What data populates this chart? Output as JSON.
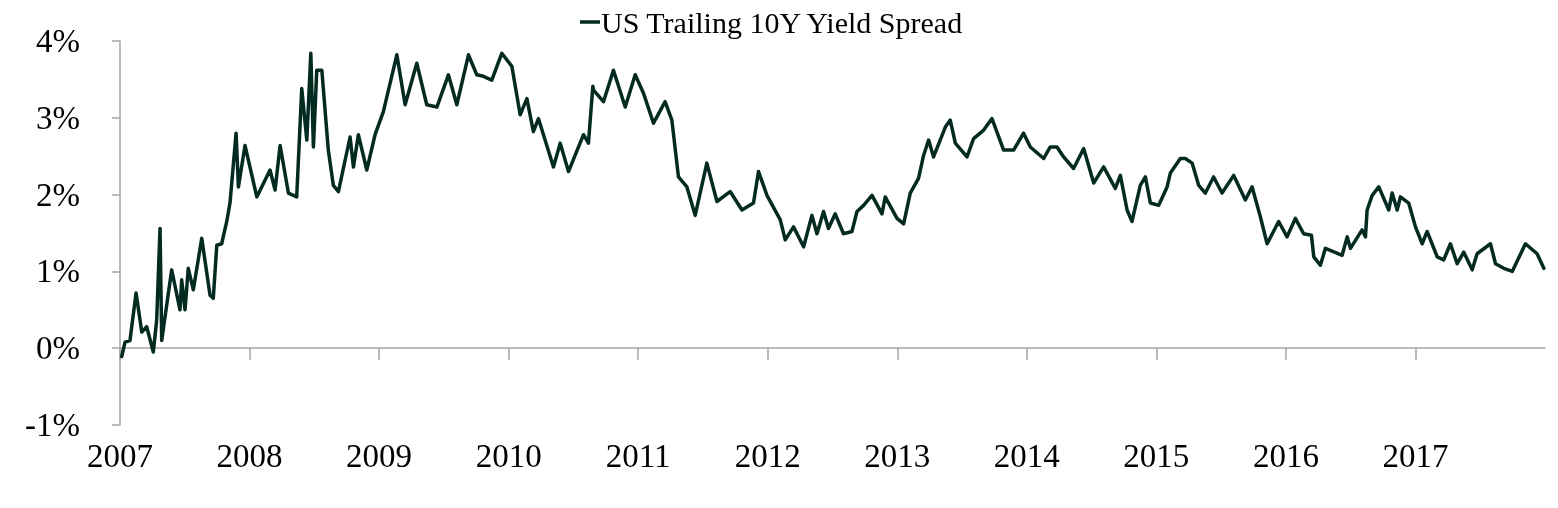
{
  "chart_data": {
    "type": "line",
    "legend": "top",
    "marker": "none",
    "line_style": "solid",
    "xlim": [
      2007,
      2018
    ],
    "xticks": [
      {
        "value": 2007,
        "label": "2007"
      },
      {
        "value": 2008,
        "label": "2008"
      },
      {
        "value": 2009,
        "label": "2009"
      },
      {
        "value": 2010,
        "label": "2010"
      },
      {
        "value": 2011,
        "label": "2011"
      },
      {
        "value": 2012,
        "label": "2012"
      },
      {
        "value": 2013,
        "label": "2013"
      },
      {
        "value": 2014,
        "label": "2014"
      },
      {
        "value": 2015,
        "label": "2015"
      },
      {
        "value": 2016,
        "label": "2016"
      },
      {
        "value": 2017,
        "label": "2017"
      }
    ],
    "ylim": [
      -1,
      4
    ],
    "yticks": [
      {
        "value": -1,
        "label": "-1%"
      },
      {
        "value": 0,
        "label": "0%"
      },
      {
        "value": 1,
        "label": "1%"
      },
      {
        "value": 2,
        "label": "2%"
      },
      {
        "value": 3,
        "label": "3%"
      },
      {
        "value": 4,
        "label": "4%"
      }
    ],
    "x": [
      2007.013,
      2007.039,
      2007.077,
      2007.124,
      2007.168,
      2007.206,
      2007.257,
      2007.283,
      2007.309,
      2007.322,
      2007.399,
      2007.463,
      2007.476,
      2007.502,
      2007.527,
      2007.566,
      2007.631,
      2007.695,
      2007.72,
      2007.747,
      2007.785,
      2007.824,
      2007.849,
      2007.896,
      2007.914,
      2007.965,
      2008.056,
      2008.158,
      2008.197,
      2008.236,
      2008.3,
      2008.364,
      2008.403,
      2008.442,
      2008.473,
      2008.493,
      2008.519,
      2008.558,
      2008.608,
      2008.647,
      2008.686,
      2008.776,
      2008.802,
      2008.84,
      2008.905,
      2008.969,
      2009.033,
      2009.137,
      2009.201,
      2009.291,
      2009.368,
      2009.446,
      2009.535,
      2009.6,
      2009.69,
      2009.754,
      2009.805,
      2009.87,
      2009.947,
      2010.025,
      2010.089,
      2010.141,
      2010.191,
      2010.23,
      2010.346,
      2010.398,
      2010.462,
      2010.578,
      2010.616,
      2010.65,
      2010.655,
      2010.732,
      2010.809,
      2010.9,
      2010.977,
      2011.041,
      2011.118,
      2011.208,
      2011.26,
      2011.311,
      2011.376,
      2011.44,
      2011.53,
      2011.608,
      2011.71,
      2011.801,
      2011.89,
      2011.929,
      2011.994,
      2012.097,
      2012.135,
      2012.199,
      2012.277,
      2012.341,
      2012.38,
      2012.431,
      2012.469,
      2012.521,
      2012.585,
      2012.65,
      2012.689,
      2012.74,
      2012.805,
      2012.882,
      2012.907,
      2012.998,
      2013.049,
      2013.1,
      2013.164,
      2013.203,
      2013.242,
      2013.28,
      2013.371,
      2013.409,
      2013.448,
      2013.538,
      2013.589,
      2013.667,
      2013.731,
      2013.821,
      2013.898,
      2013.975,
      2014.027,
      2014.13,
      2014.181,
      2014.233,
      2014.284,
      2014.361,
      2014.439,
      2014.516,
      2014.593,
      2014.683,
      2014.722,
      2014.774,
      2014.812,
      2014.876,
      2014.915,
      2014.954,
      2015.018,
      2015.083,
      2015.108,
      2015.185,
      2015.224,
      2015.276,
      2015.327,
      2015.378,
      2015.442,
      2015.507,
      2015.597,
      2015.687,
      2015.739,
      2015.803,
      2015.855,
      2015.944,
      2016.009,
      2016.073,
      2016.137,
      2016.197,
      2016.215,
      2016.266,
      2016.305,
      2016.434,
      2016.473,
      2016.498,
      2016.588,
      2016.614,
      2016.627,
      2016.666,
      2016.717,
      2016.794,
      2016.82,
      2016.859,
      2016.884,
      2016.948,
      2017,
      2017.052,
      2017.09,
      2017.168,
      2017.218,
      2017.27,
      2017.322,
      2017.373,
      2017.438,
      2017.476,
      2017.579,
      2017.618,
      2017.682,
      2017.747,
      2017.849,
      2017.939,
      2017.991
    ],
    "series": [
      {
        "name": "US Trailing 10Y Yield Spread",
        "color": "#032b22",
        "values": [
          -0.11,
          0.08,
          0.1,
          0.72,
          0.21,
          0.28,
          -0.05,
          0.36,
          1.56,
          0.1,
          1.02,
          0.5,
          0.89,
          0.5,
          1.04,
          0.76,
          1.43,
          0.69,
          0.65,
          1.34,
          1.36,
          1.65,
          1.89,
          2.8,
          2.1,
          2.64,
          1.97,
          2.32,
          2.06,
          2.64,
          2.02,
          1.97,
          3.38,
          2.71,
          3.84,
          2.62,
          3.62,
          3.62,
          2.58,
          2.12,
          2.04,
          2.75,
          2.36,
          2.78,
          2.32,
          2.78,
          3.08,
          3.82,
          3.17,
          3.71,
          3.17,
          3.14,
          3.56,
          3.17,
          3.82,
          3.56,
          3.54,
          3.49,
          3.84,
          3.67,
          3.04,
          3.25,
          2.82,
          2.99,
          2.36,
          2.67,
          2.3,
          2.78,
          2.67,
          3.41,
          3.36,
          3.21,
          3.62,
          3.14,
          3.56,
          3.32,
          2.93,
          3.21,
          2.97,
          2.23,
          2.1,
          1.73,
          2.41,
          1.91,
          2.04,
          1.8,
          1.89,
          2.3,
          1.99,
          1.67,
          1.41,
          1.58,
          1.32,
          1.73,
          1.49,
          1.78,
          1.56,
          1.75,
          1.49,
          1.52,
          1.78,
          1.86,
          1.99,
          1.75,
          1.97,
          1.69,
          1.62,
          2.02,
          2.21,
          2.51,
          2.71,
          2.49,
          2.88,
          2.97,
          2.67,
          2.49,
          2.73,
          2.84,
          2.99,
          2.58,
          2.58,
          2.8,
          2.62,
          2.47,
          2.62,
          2.62,
          2.49,
          2.34,
          2.6,
          2.15,
          2.36,
          2.08,
          2.25,
          1.8,
          1.65,
          2.12,
          2.23,
          1.89,
          1.86,
          2.1,
          2.28,
          2.47,
          2.47,
          2.41,
          2.12,
          2.02,
          2.23,
          2.02,
          2.25,
          1.93,
          2.1,
          1.71,
          1.36,
          1.65,
          1.45,
          1.69,
          1.49,
          1.47,
          1.19,
          1.08,
          1.3,
          1.21,
          1.45,
          1.3,
          1.54,
          1.45,
          1.8,
          1.99,
          2.1,
          1.8,
          2.02,
          1.8,
          1.97,
          1.89,
          1.58,
          1.36,
          1.52,
          1.19,
          1.15,
          1.36,
          1.1,
          1.25,
          1.02,
          1.23,
          1.36,
          1.1,
          1.04,
          1,
          1.36,
          1.23,
          1.04
        ]
      }
    ]
  }
}
